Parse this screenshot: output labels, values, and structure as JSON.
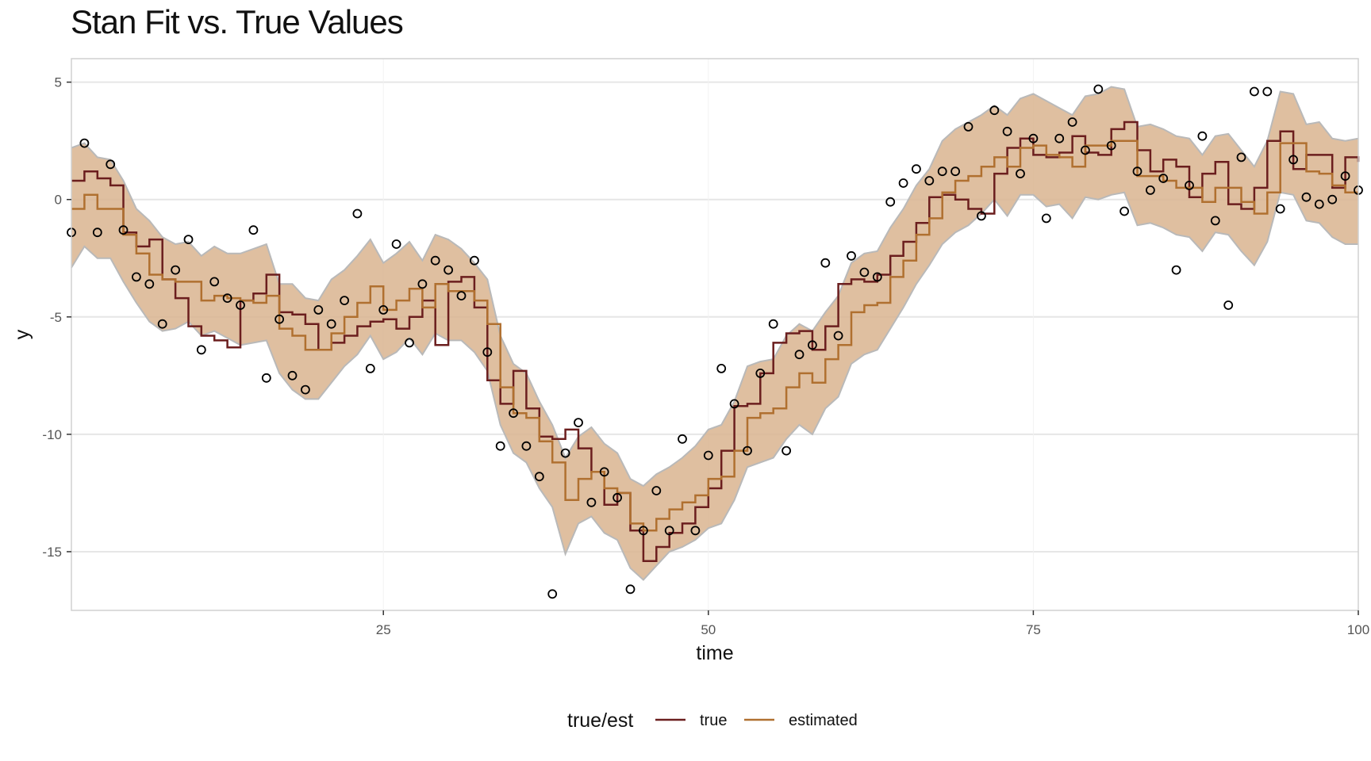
{
  "chart_data": {
    "type": "line",
    "title": "Stan Fit vs. True Values",
    "xlabel": "time",
    "ylabel": "y",
    "xlim": [
      1,
      100
    ],
    "ylim": [
      -17.5,
      6
    ],
    "xticks": [
      25,
      50,
      75,
      100
    ],
    "yticks": [
      5,
      0,
      -5,
      -10,
      -15
    ],
    "grid": true,
    "legend": {
      "title": "true/est",
      "placement": "bottom"
    },
    "colors": {
      "true": "#6b1e1e",
      "estimated": "#b07030",
      "band": "#d9b48f",
      "band_edge": "#b9b9b9",
      "points": "#000000"
    },
    "x": [
      1,
      2,
      3,
      4,
      5,
      6,
      7,
      8,
      9,
      10,
      11,
      12,
      13,
      14,
      15,
      16,
      17,
      18,
      19,
      20,
      21,
      22,
      23,
      24,
      25,
      26,
      27,
      28,
      29,
      30,
      31,
      32,
      33,
      34,
      35,
      36,
      37,
      38,
      39,
      40,
      41,
      42,
      43,
      44,
      45,
      46,
      47,
      48,
      49,
      50,
      51,
      52,
      53,
      54,
      55,
      56,
      57,
      58,
      59,
      60,
      61,
      62,
      63,
      64,
      65,
      66,
      67,
      68,
      69,
      70,
      71,
      72,
      73,
      74,
      75,
      76,
      77,
      78,
      79,
      80,
      81,
      82,
      83,
      84,
      85,
      86,
      87,
      88,
      89,
      90,
      91,
      92,
      93,
      94,
      95,
      96,
      97,
      98,
      99,
      100
    ],
    "series": [
      {
        "name": "true",
        "values": [
          0.8,
          1.2,
          0.9,
          0.6,
          -1.4,
          -2.0,
          -1.7,
          -3.4,
          -4.2,
          -5.4,
          -5.8,
          -6.0,
          -6.3,
          -4.3,
          -4.0,
          -3.2,
          -4.8,
          -4.9,
          -5.3,
          -6.4,
          -6.1,
          -5.8,
          -5.4,
          -5.2,
          -5.1,
          -5.5,
          -5.0,
          -4.3,
          -6.2,
          -3.5,
          -3.3,
          -4.6,
          -7.7,
          -8.7,
          -7.3,
          -8.9,
          -10.1,
          -10.2,
          -9.8,
          -10.6,
          -11.6,
          -13.0,
          -12.5,
          -14.1,
          -15.4,
          -14.8,
          -14.2,
          -13.8,
          -13.1,
          -12.3,
          -10.7,
          -8.8,
          -8.7,
          -7.4,
          -6.1,
          -5.7,
          -5.6,
          -6.4,
          -5.4,
          -3.6,
          -3.4,
          -3.5,
          -3.2,
          -2.4,
          -1.8,
          -1.0,
          0.1,
          0.2,
          0.0,
          -0.4,
          -0.6,
          1.1,
          2.2,
          2.6,
          1.9,
          1.8,
          2.0,
          2.7,
          2.0,
          1.9,
          3.0,
          3.3,
          2.1,
          1.2,
          1.7,
          1.4,
          0.1,
          1.1,
          1.6,
          -0.2,
          -0.4,
          0.5,
          2.5,
          2.9,
          1.3,
          1.9,
          1.9,
          0.5,
          1.8,
          1.6
        ]
      },
      {
        "name": "estimated",
        "values": [
          -0.4,
          0.2,
          -0.4,
          -0.4,
          -1.5,
          -2.3,
          -3.2,
          -3.4,
          -3.5,
          -3.5,
          -4.3,
          -4.1,
          -4.2,
          -4.3,
          -4.4,
          -4.1,
          -5.5,
          -5.8,
          -6.4,
          -6.4,
          -5.7,
          -5.0,
          -4.4,
          -3.7,
          -4.7,
          -4.3,
          -3.8,
          -4.6,
          -3.6,
          -3.9,
          -3.9,
          -4.3,
          -5.3,
          -8.0,
          -9.1,
          -9.3,
          -10.3,
          -11.2,
          -12.8,
          -11.9,
          -11.6,
          -12.3,
          -12.5,
          -13.8,
          -14.1,
          -13.6,
          -13.2,
          -12.9,
          -12.6,
          -11.9,
          -11.8,
          -10.7,
          -9.3,
          -9.1,
          -8.9,
          -8.0,
          -7.4,
          -7.8,
          -6.8,
          -6.2,
          -4.8,
          -4.5,
          -4.4,
          -3.3,
          -2.6,
          -1.5,
          -0.8,
          0.3,
          0.8,
          1.0,
          1.4,
          1.8,
          1.4,
          2.2,
          2.3,
          1.9,
          1.8,
          1.4,
          2.3,
          2.3,
          2.5,
          2.5,
          1.0,
          1.0,
          0.8,
          0.5,
          0.5,
          -0.1,
          0.5,
          0.5,
          -0.1,
          -0.6,
          0.3,
          2.4,
          2.4,
          1.2,
          1.1,
          0.6,
          0.3,
          0.3
        ]
      },
      {
        "name": "observed",
        "values": [
          -1.4,
          2.4,
          -1.4,
          1.5,
          -1.3,
          -3.3,
          -3.6,
          -5.3,
          -3.0,
          -1.7,
          -6.4,
          -3.5,
          -4.2,
          -4.5,
          -1.3,
          -7.6,
          -5.1,
          -7.5,
          -8.1,
          -4.7,
          -5.3,
          -4.3,
          -0.6,
          -7.2,
          -4.7,
          -1.9,
          -6.1,
          -3.6,
          -2.6,
          -3.0,
          -4.1,
          -2.6,
          -6.5,
          -10.5,
          -9.1,
          -10.5,
          -11.8,
          -16.8,
          -10.8,
          -9.5,
          -12.9,
          -11.6,
          -12.7,
          -16.6,
          -14.1,
          -12.4,
          -14.1,
          -10.2,
          -14.1,
          -10.9,
          -7.2,
          -8.7,
          -10.7,
          -7.4,
          -5.3,
          -10.7,
          -6.6,
          -6.2,
          -2.7,
          -5.8,
          -2.4,
          -3.1,
          -3.3,
          -0.1,
          0.7,
          1.3,
          0.8,
          1.2,
          1.2,
          3.1,
          -0.7,
          3.8,
          2.9,
          1.1,
          2.6,
          -0.8,
          2.6,
          3.3,
          2.1,
          4.7,
          2.3,
          -0.5,
          1.2,
          0.4,
          0.9,
          -3.0,
          0.6,
          2.7,
          -0.9,
          -4.5,
          1.8,
          4.6,
          4.6,
          -0.4,
          1.7,
          0.1,
          -0.2,
          0.0,
          1.0,
          0.4
        ]
      }
    ],
    "interval": {
      "upper": [
        2.2,
        2.4,
        1.8,
        1.7,
        0.8,
        -0.4,
        -0.9,
        -1.6,
        -1.9,
        -1.8,
        -2.4,
        -2.0,
        -2.3,
        -2.3,
        -2.1,
        -1.9,
        -3.6,
        -3.6,
        -4.2,
        -4.3,
        -3.4,
        -3.0,
        -2.4,
        -1.7,
        -2.7,
        -2.3,
        -1.8,
        -2.6,
        -1.5,
        -1.7,
        -2.1,
        -2.7,
        -3.4,
        -5.8,
        -7.0,
        -7.4,
        -8.6,
        -9.6,
        -11.0,
        -10.1,
        -9.7,
        -10.4,
        -10.8,
        -11.9,
        -12.2,
        -11.7,
        -11.4,
        -11.0,
        -10.5,
        -9.8,
        -9.6,
        -8.6,
        -7.1,
        -6.9,
        -6.8,
        -5.8,
        -5.3,
        -5.6,
        -4.8,
        -4.1,
        -2.7,
        -2.3,
        -2.2,
        -1.2,
        -0.4,
        0.6,
        1.3,
        2.5,
        3.0,
        3.3,
        3.6,
        4.0,
        3.6,
        4.3,
        4.5,
        4.2,
        3.9,
        3.6,
        4.4,
        4.5,
        4.8,
        4.7,
        3.1,
        3.2,
        3.0,
        2.7,
        2.6,
        1.9,
        2.7,
        2.8,
        2.1,
        1.4,
        2.5,
        4.6,
        4.5,
        3.2,
        3.3,
        2.6,
        2.5,
        2.6
      ],
      "lower": [
        -2.9,
        -2.0,
        -2.5,
        -2.5,
        -3.5,
        -4.4,
        -5.2,
        -5.6,
        -5.5,
        -5.2,
        -5.8,
        -5.6,
        -5.9,
        -6.2,
        -6.1,
        -6.0,
        -7.4,
        -8.1,
        -8.5,
        -8.5,
        -7.8,
        -7.1,
        -6.6,
        -5.8,
        -6.8,
        -6.5,
        -5.9,
        -6.6,
        -5.7,
        -6.0,
        -6.0,
        -6.5,
        -7.3,
        -9.6,
        -10.8,
        -11.2,
        -12.3,
        -13.1,
        -15.1,
        -13.8,
        -13.5,
        -14.2,
        -14.5,
        -15.7,
        -16.2,
        -15.6,
        -15.0,
        -14.8,
        -14.5,
        -14.0,
        -13.8,
        -12.8,
        -11.4,
        -11.2,
        -11.0,
        -10.2,
        -9.6,
        -10.0,
        -8.9,
        -8.4,
        -7.0,
        -6.6,
        -6.4,
        -5.5,
        -4.6,
        -3.6,
        -2.8,
        -1.9,
        -1.4,
        -1.1,
        -0.6,
        0.0,
        -0.7,
        0.2,
        0.2,
        -0.3,
        -0.2,
        -0.8,
        0.1,
        0.0,
        0.2,
        0.3,
        -1.1,
        -1.0,
        -1.2,
        -1.5,
        -1.6,
        -2.2,
        -1.4,
        -1.5,
        -2.2,
        -2.8,
        -1.8,
        0.3,
        0.2,
        -0.9,
        -1.0,
        -1.6,
        -1.9,
        -1.9
      ]
    }
  }
}
